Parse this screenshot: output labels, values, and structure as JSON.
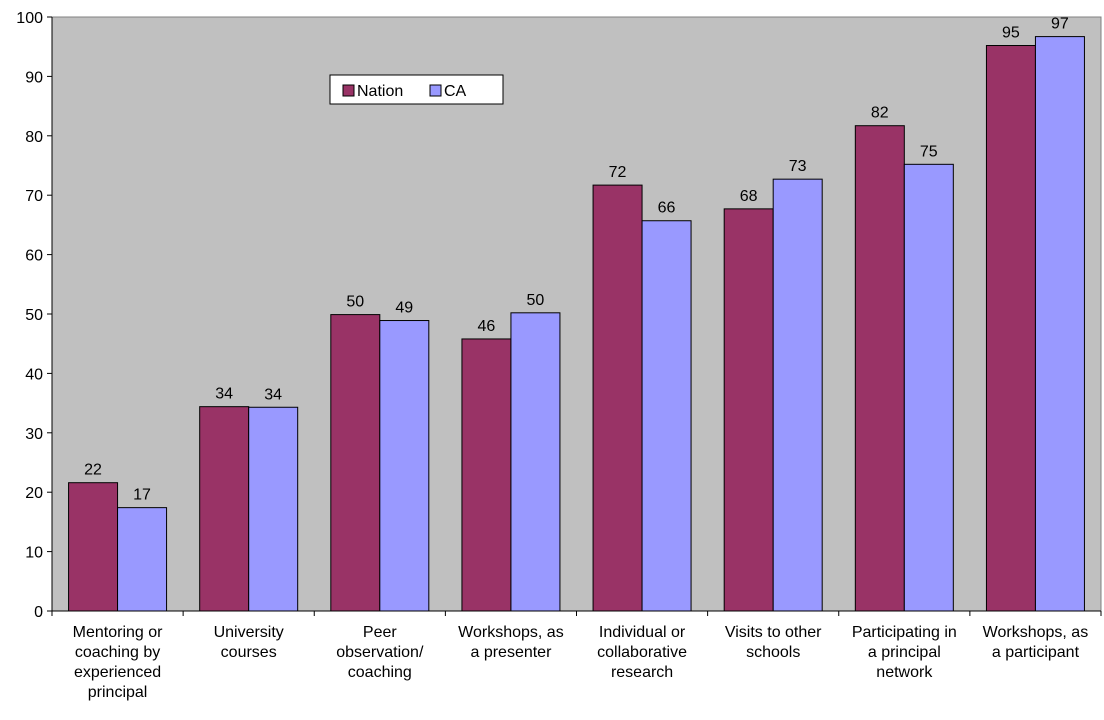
{
  "chart_data": {
    "type": "bar",
    "title": "",
    "xlabel": "",
    "ylabel": "",
    "ylim": [
      0,
      100
    ],
    "y_ticks": [
      0,
      10,
      20,
      30,
      40,
      50,
      60,
      70,
      80,
      90,
      100
    ],
    "grid": false,
    "legend_position": "top-left",
    "plot_background": "#C0C0C0",
    "categories": [
      [
        "Mentoring or",
        "coaching by",
        "experienced",
        "principal"
      ],
      [
        "University",
        "courses"
      ],
      [
        "Peer",
        "observation/",
        "coaching"
      ],
      [
        "Workshops, as",
        "a presenter"
      ],
      [
        "Individual or",
        "collaborative",
        "research"
      ],
      [
        "Visits to other",
        "schools"
      ],
      [
        "Participating in",
        "a principal",
        "network"
      ],
      [
        "Workshops, as",
        "a participant"
      ]
    ],
    "series": [
      {
        "name": "Nation",
        "color": "#993366",
        "values": [
          21.6,
          34.4,
          49.9,
          45.8,
          71.7,
          67.7,
          81.7,
          95.2
        ],
        "labels": [
          "22",
          "34",
          "50",
          "46",
          "72",
          "68",
          "82",
          "95"
        ]
      },
      {
        "name": "CA",
        "color": "#9999FF",
        "values": [
          17.4,
          34.3,
          48.9,
          50.2,
          65.7,
          72.7,
          75.2,
          96.7
        ],
        "labels": [
          "17",
          "34",
          "49",
          "50",
          "66",
          "73",
          "75",
          "97"
        ]
      }
    ]
  }
}
